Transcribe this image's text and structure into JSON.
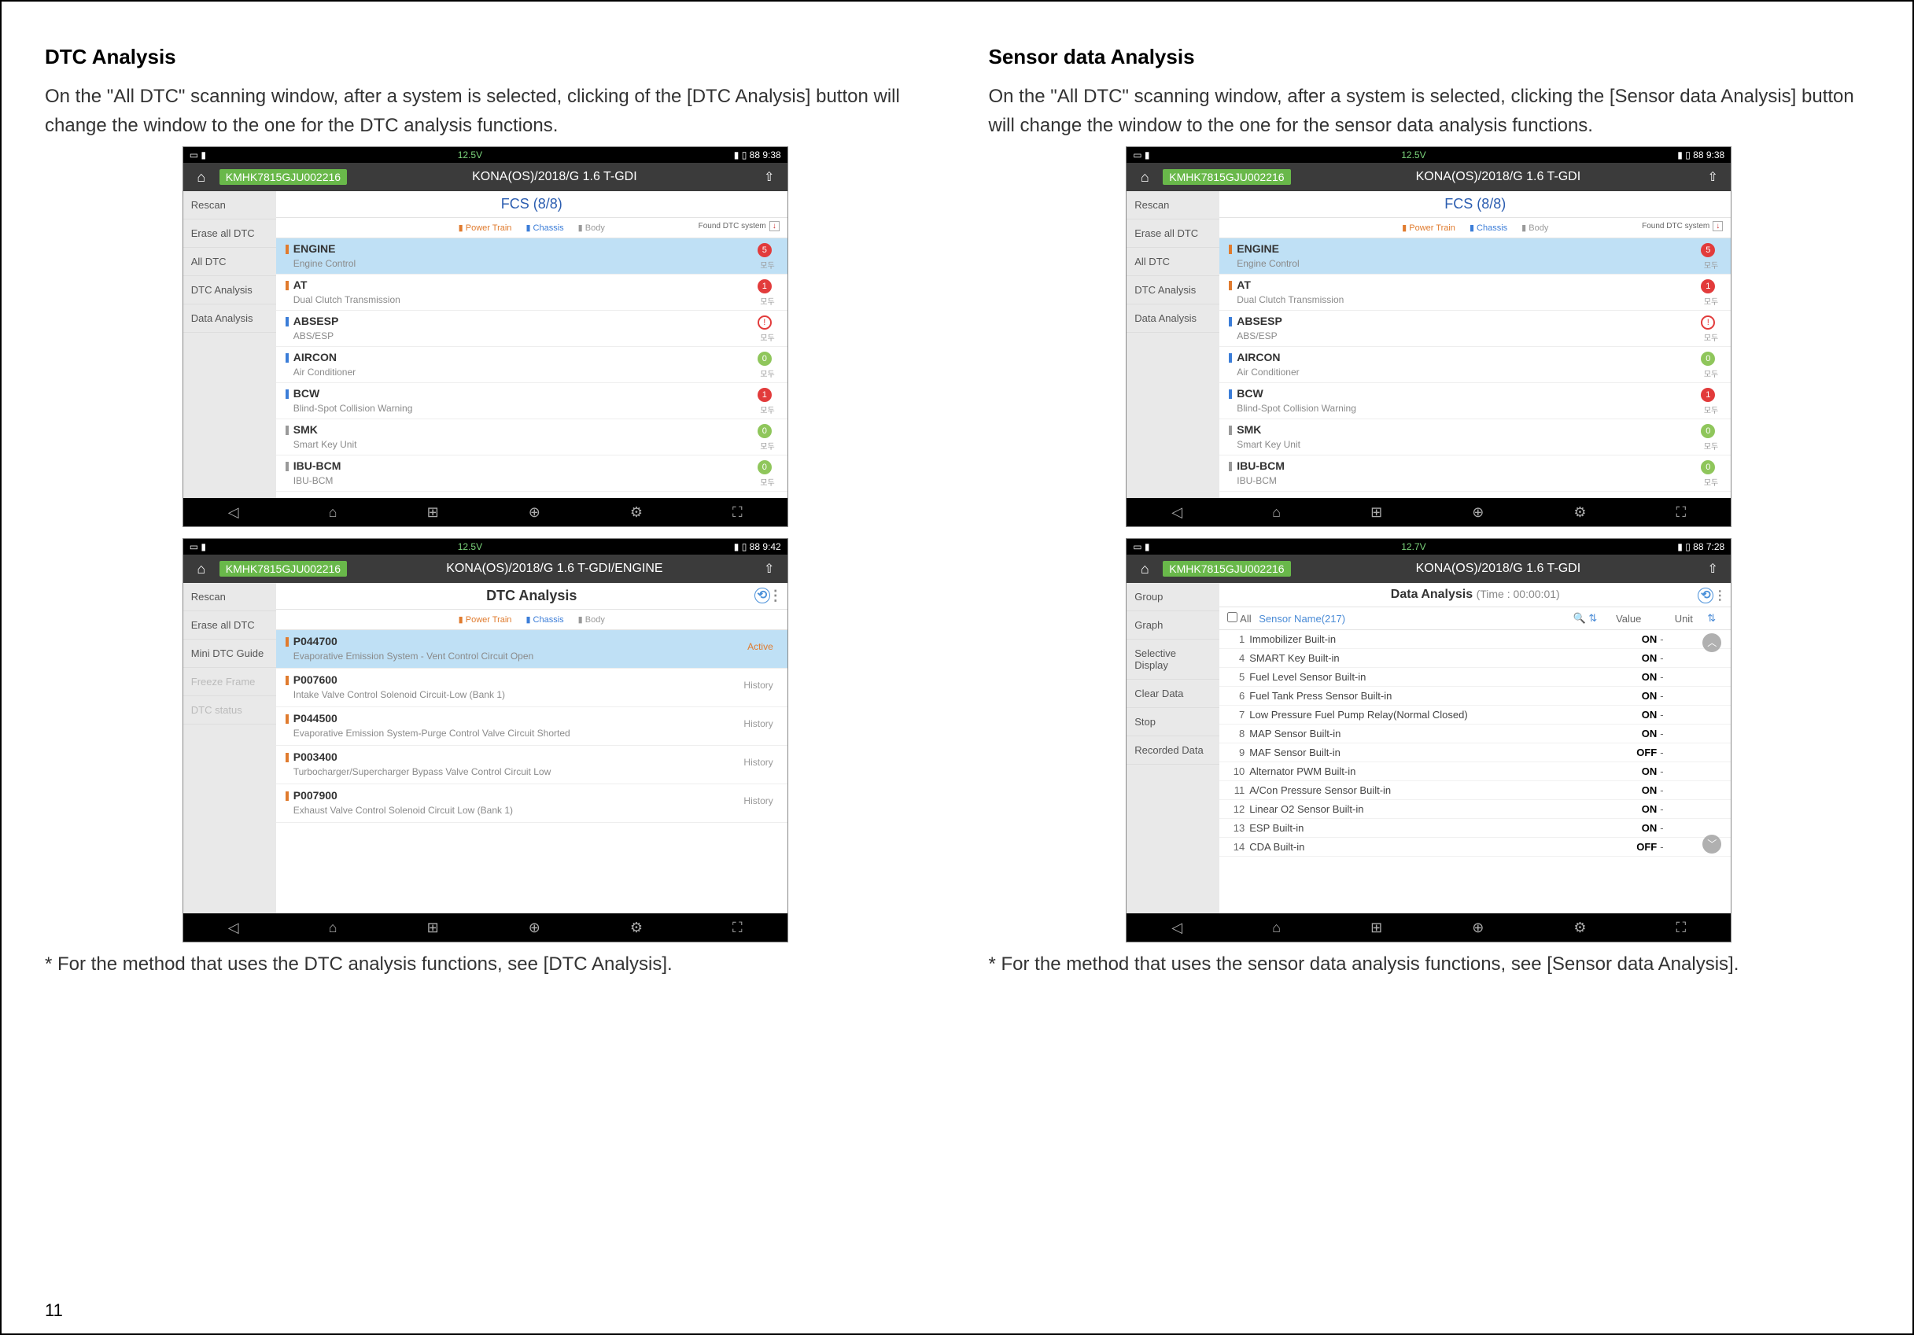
{
  "page_number": "11",
  "left": {
    "heading": "DTC Analysis",
    "desc": "On the \"All DTC\" scanning window, after a system is selected, clicking of the [DTC Analysis] button will change the window to the one for the DTC analysis functions.",
    "footnote": "* For the method that uses the DTC analysis functions, see [DTC Analysis]."
  },
  "right": {
    "heading": "Sensor data Analysis",
    "desc": "On the \"All DTC\" scanning window, after a system is selected, clicking the [Sensor data Analysis] button will change the window to the one for the sensor data analysis functions.",
    "footnote": "* For the method that uses the sensor data analysis functions, see [Sensor data Analysis]."
  },
  "status": {
    "volt": "12.5V",
    "batt": "88",
    "time1": "9:38",
    "time2": "9:42",
    "time3": "7:28",
    "volt2": "12.7V"
  },
  "vehicle": {
    "vin": "KMHK7815GJU002216",
    "model": "KONA(OS)/2018/G 1.6 T-GDI",
    "model_engine": "KONA(OS)/2018/G 1.6 T-GDI/ENGINE"
  },
  "fcs": {
    "title": "FCS (8/8)",
    "filters": {
      "power": "Power Train",
      "chassis": "Chassis",
      "body": "Body",
      "found": "Found DTC system"
    },
    "sidebar": [
      "Rescan",
      "Erase all DTC",
      "All DTC",
      "DTC Analysis",
      "Data Analysis"
    ],
    "systems": [
      {
        "name": "ENGINE",
        "sub": "Engine Control",
        "bar": "#e07b2e",
        "badge": "5",
        "badgecls": "red",
        "sel": true
      },
      {
        "name": "AT",
        "sub": "Dual Clutch Transmission",
        "bar": "#e07b2e",
        "badge": "1",
        "badgecls": "red"
      },
      {
        "name": "ABSESP",
        "sub": "ABS/ESP",
        "bar": "#3b7dd8",
        "badge": "!",
        "badgecls": "ring"
      },
      {
        "name": "AIRCON",
        "sub": "Air Conditioner",
        "bar": "#3b7dd8",
        "badge": "0",
        "badgecls": "green"
      },
      {
        "name": "BCW",
        "sub": "Blind-Spot Collision Warning",
        "bar": "#3b7dd8",
        "badge": "1",
        "badgecls": "red"
      },
      {
        "name": "SMK",
        "sub": "Smart Key Unit",
        "bar": "#999",
        "badge": "0",
        "badgecls": "green"
      },
      {
        "name": "IBU-BCM",
        "sub": "IBU-BCM",
        "bar": "#999",
        "badge": "0",
        "badgecls": "green"
      }
    ],
    "badgesub": "모두"
  },
  "dtc": {
    "title": "DTC Analysis",
    "sidebar": [
      "Rescan",
      "Erase all DTC",
      "Mini DTC Guide",
      "Freeze Frame",
      "DTC status"
    ],
    "sidebar_disabled": [
      3,
      4
    ],
    "codes": [
      {
        "code": "P044700",
        "txt": "Evaporative Emission System - Vent Control Circuit Open",
        "status": "Active",
        "active": true,
        "sel": true
      },
      {
        "code": "P007600",
        "txt": "Intake Valve Control Solenoid Circuit-Low (Bank 1)",
        "status": "History"
      },
      {
        "code": "P044500",
        "txt": "Evaporative Emission System-Purge Control Valve Circuit Shorted",
        "status": "History"
      },
      {
        "code": "P003400",
        "txt": "Turbocharger/Supercharger Bypass Valve Control Circuit Low",
        "status": "History"
      },
      {
        "code": "P007900",
        "txt": "Exhaust Valve Control Solenoid Circuit Low (Bank 1)",
        "status": "History"
      }
    ]
  },
  "data": {
    "title": "Data Analysis",
    "time": "(Time : 00:00:01)",
    "sidebar": [
      "Group",
      "Graph",
      "Selective Display",
      "Clear Data",
      "Stop",
      "Recorded Data"
    ],
    "header": {
      "all": "All",
      "name": "Sensor Name(217)",
      "value": "Value",
      "unit": "Unit"
    },
    "rows": [
      {
        "i": "1",
        "n": "Immobilizer Built-in",
        "v": "ON",
        "u": "-"
      },
      {
        "i": "4",
        "n": "SMART Key Built-in",
        "v": "ON",
        "u": "-"
      },
      {
        "i": "5",
        "n": "Fuel Level Sensor Built-in",
        "v": "ON",
        "u": "-"
      },
      {
        "i": "6",
        "n": "Fuel Tank Press Sensor Built-in",
        "v": "ON",
        "u": "-"
      },
      {
        "i": "7",
        "n": "Low Pressure Fuel Pump Relay(Normal Closed)",
        "v": "ON",
        "u": "-"
      },
      {
        "i": "8",
        "n": "MAP Sensor Built-in",
        "v": "ON",
        "u": "-"
      },
      {
        "i": "9",
        "n": "MAF Sensor Built-in",
        "v": "OFF",
        "u": "-"
      },
      {
        "i": "10",
        "n": "Alternator PWM Built-in",
        "v": "ON",
        "u": "-"
      },
      {
        "i": "11",
        "n": "A/Con Pressure Sensor Built-in",
        "v": "ON",
        "u": "-"
      },
      {
        "i": "12",
        "n": "Linear O2 Sensor Built-in",
        "v": "ON",
        "u": "-"
      },
      {
        "i": "13",
        "n": "ESP Built-in",
        "v": "ON",
        "u": "-"
      },
      {
        "i": "14",
        "n": "CDA Built-in",
        "v": "OFF",
        "u": "-"
      }
    ]
  }
}
